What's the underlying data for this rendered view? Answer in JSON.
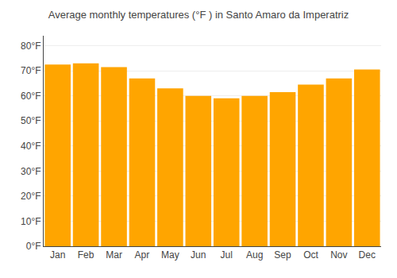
{
  "chart_data": {
    "type": "bar",
    "title": "Average monthly temperatures (°F ) in Santo Amaro da Imperatriz",
    "categories": [
      "Jan",
      "Feb",
      "Mar",
      "Apr",
      "May",
      "Jun",
      "Jul",
      "Aug",
      "Sep",
      "Oct",
      "Nov",
      "Dec"
    ],
    "values": [
      72.5,
      73.0,
      71.5,
      67.0,
      63.0,
      60.0,
      59.0,
      60.0,
      61.5,
      64.5,
      67.0,
      70.5
    ],
    "color": "#FFA500",
    "ylim": [
      0,
      84
    ],
    "yticks": [
      {
        "value": 0,
        "label": "0°F"
      },
      {
        "value": 10,
        "label": "10°F"
      },
      {
        "value": 20,
        "label": "20°F"
      },
      {
        "value": 30,
        "label": "30°F"
      },
      {
        "value": 40,
        "label": "40°F"
      },
      {
        "value": 50,
        "label": "50°F"
      },
      {
        "value": 60,
        "label": "60°F"
      },
      {
        "value": 70,
        "label": "70°F"
      },
      {
        "value": 80,
        "label": "80°F"
      }
    ],
    "grid": true
  }
}
